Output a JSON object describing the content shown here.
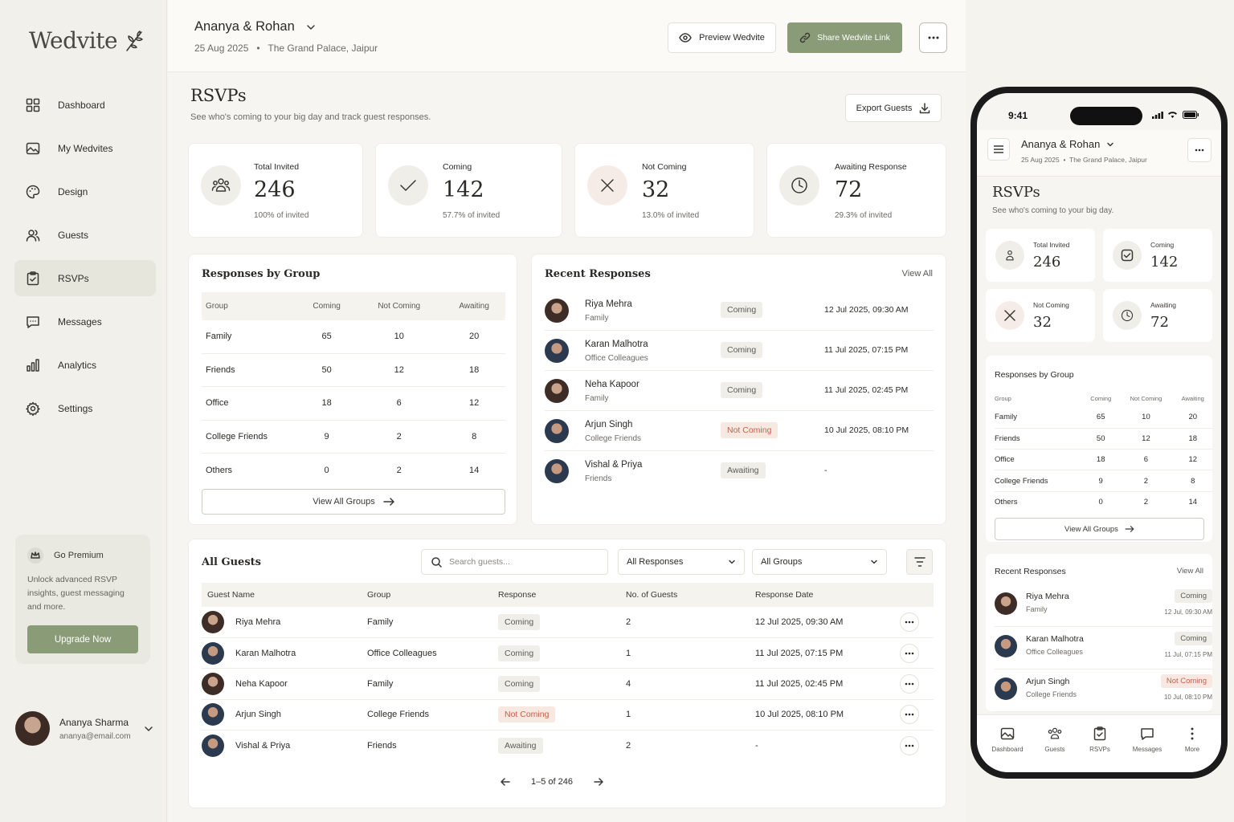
{
  "app": {
    "logo": "Wedvite"
  },
  "sidebar": {
    "items": [
      {
        "label": "Dashboard",
        "icon": "grid-icon"
      },
      {
        "label": "My Wedvites",
        "icon": "image-icon"
      },
      {
        "label": "Design",
        "icon": "palette-icon"
      },
      {
        "label": "Guests",
        "icon": "users-icon"
      },
      {
        "label": "RSVPs",
        "icon": "clipboard-check-icon",
        "active": true
      },
      {
        "label": "Messages",
        "icon": "message-icon"
      },
      {
        "label": "Analytics",
        "icon": "bar-chart-icon"
      },
      {
        "label": "Settings",
        "icon": "gear-icon"
      }
    ],
    "premium": {
      "title": "Go Premium",
      "desc": "Unlock advanced RSVP insights, guest messaging and more.",
      "button": "Upgrade Now"
    },
    "user": {
      "name": "Ananya Sharma",
      "email": "ananya@email.com"
    }
  },
  "header": {
    "couple": "Ananya & Rohan",
    "date": "25 Aug 2025",
    "venue": "The Grand Palace, Jaipur",
    "preview_label": "Preview Wedvite",
    "share_label": "Share Wedvite Link"
  },
  "page": {
    "title": "RSVPs",
    "subtitle": "See who's coming to your big day and track guest responses.",
    "export_label": "Export Guests"
  },
  "stats": [
    {
      "label": "Total Invited",
      "value": "246",
      "pct": "100% of invited",
      "icon": "users-icon"
    },
    {
      "label": "Coming",
      "value": "142",
      "pct": "57.7% of invited",
      "icon": "check-icon"
    },
    {
      "label": "Not Coming",
      "value": "32",
      "pct": "13.0% of invited",
      "icon": "x-icon"
    },
    {
      "label": "Awaiting Response",
      "value": "72",
      "pct": "29.3% of invited",
      "icon": "clock-icon"
    }
  ],
  "groups": {
    "title": "Responses by Group",
    "columns": [
      "Group",
      "Coming",
      "Not Coming",
      "Awaiting"
    ],
    "rows": [
      [
        "Family",
        "65",
        "10",
        "20"
      ],
      [
        "Friends",
        "50",
        "12",
        "18"
      ],
      [
        "Office",
        "18",
        "6",
        "12"
      ],
      [
        "College Friends",
        "9",
        "2",
        "8"
      ],
      [
        "Others",
        "0",
        "2",
        "14"
      ]
    ],
    "view_all": "View All Groups"
  },
  "recent": {
    "title": "Recent Responses",
    "view_all": "View All",
    "items": [
      {
        "name": "Riya Mehra",
        "group": "Family",
        "status": "Coming",
        "date": "12 Jul 2025, 09:30 AM"
      },
      {
        "name": "Karan Malhotra",
        "group": "Office Colleagues",
        "status": "Coming",
        "date": "11 Jul 2025, 07:15 PM"
      },
      {
        "name": "Neha Kapoor",
        "group": "Family",
        "status": "Coming",
        "date": "11 Jul 2025, 02:45 PM"
      },
      {
        "name": "Arjun Singh",
        "group": "College Friends",
        "status": "Not Coming",
        "date": "10 Jul 2025, 08:10 PM"
      },
      {
        "name": "Vishal & Priya",
        "group": "Friends",
        "status": "Awaiting",
        "date": "-"
      }
    ]
  },
  "guests": {
    "title": "All Guests",
    "search_placeholder": "Search guests...",
    "response_filter": "All Responses",
    "group_filter": "All Groups",
    "columns": [
      "Guest Name",
      "Group",
      "Response",
      "No. of Guests",
      "Response Date"
    ],
    "rows": [
      {
        "name": "Riya Mehra",
        "group": "Family",
        "response": "Coming",
        "count": "2",
        "date": "12 Jul 2025, 09:30 AM"
      },
      {
        "name": "Karan Malhotra",
        "group": "Office Colleagues",
        "response": "Coming",
        "count": "1",
        "date": "11 Jul 2025, 07:15 PM"
      },
      {
        "name": "Neha Kapoor",
        "group": "Family",
        "response": "Coming",
        "count": "4",
        "date": "11 Jul 2025, 02:45 PM"
      },
      {
        "name": "Arjun Singh",
        "group": "College Friends",
        "response": "Not Coming",
        "count": "1",
        "date": "10 Jul 2025, 08:10 PM"
      },
      {
        "name": "Vishal & Priya",
        "group": "Friends",
        "response": "Awaiting",
        "count": "2",
        "date": "-"
      }
    ],
    "pagination": "1–5 of 246"
  },
  "mobile": {
    "time": "9:41",
    "couple": "Ananya & Rohan",
    "meta": "25 Aug 2025  •  The Grand Palace, Jaipur",
    "title": "RSVPs",
    "subtitle": "See who's coming to your big day.",
    "stats": [
      {
        "label": "Total Invited",
        "value": "246"
      },
      {
        "label": "Coming",
        "value": "142"
      },
      {
        "label": "Not Coming",
        "value": "32"
      },
      {
        "label": "Awaiting",
        "value": "72"
      }
    ],
    "groups_title": "Responses by Group",
    "groups_columns": [
      "Group",
      "Coming",
      "Not Coming",
      "Awaiting"
    ],
    "groups_rows": [
      [
        "Family",
        "65",
        "10",
        "20"
      ],
      [
        "Friends",
        "50",
        "12",
        "18"
      ],
      [
        "Office",
        "18",
        "6",
        "12"
      ],
      [
        "College Friends",
        "9",
        "2",
        "8"
      ],
      [
        "Others",
        "0",
        "2",
        "14"
      ]
    ],
    "view_groups": "View All Groups",
    "recent_title": "Recent Responses",
    "recent_view_all": "View All",
    "recent": [
      {
        "name": "Riya Mehra",
        "group": "Family",
        "status": "Coming",
        "date": "12 Jul, 09:30 AM"
      },
      {
        "name": "Karan Malhotra",
        "group": "Office Colleagues",
        "status": "Coming",
        "date": "11 Jul, 07:15 PM"
      },
      {
        "name": "Arjun Singh",
        "group": "College Friends",
        "status": "Not Coming",
        "date": "10 Jul, 08:10 PM"
      }
    ],
    "nav": [
      "Dashboard",
      "Guests",
      "RSVPs",
      "Messages",
      "More"
    ]
  },
  "colors": {
    "accent": "#8a9b78",
    "not_coming": "#c0634c",
    "background": "#f6f5f1"
  }
}
